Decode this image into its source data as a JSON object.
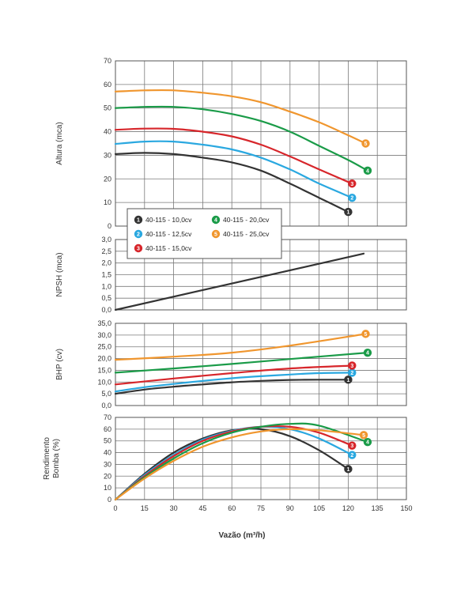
{
  "chart_data": {
    "type": "line",
    "xlabel": "Vazão (m³/h)",
    "x_ticks": [
      "0",
      "15",
      "30",
      "45",
      "60",
      "75",
      "90",
      "105",
      "120",
      "135",
      "150"
    ],
    "xlim": [
      0,
      150
    ],
    "legend": {
      "placement": "inside-top-panel-bottom-left",
      "entries": [
        {
          "id": "1",
          "label": "40-115 - 10,0cv",
          "color": "#333333"
        },
        {
          "id": "2",
          "label": "40-115 - 12,5cv",
          "color": "#2aa8e0"
        },
        {
          "id": "3",
          "label": "40-115 - 15,0cv",
          "color": "#d7262b"
        },
        {
          "id": "4",
          "label": "40-115 - 20,0cv",
          "color": "#1a9b48"
        },
        {
          "id": "5",
          "label": "40-115 - 25,0cv",
          "color": "#f0962e"
        }
      ]
    },
    "panels": [
      {
        "name": "altura",
        "ylabel": "Altura (mca)",
        "ylim": [
          0,
          70
        ],
        "y_ticks": [
          "0",
          "10",
          "20",
          "30",
          "40",
          "50",
          "60",
          "70"
        ],
        "grid": true,
        "series": [
          {
            "id": "1",
            "color": "#333333",
            "points": [
              [
                0,
                30.5
              ],
              [
                15,
                31
              ],
              [
                30,
                30.5
              ],
              [
                45,
                29
              ],
              [
                60,
                27
              ],
              [
                75,
                23.5
              ],
              [
                90,
                18
              ],
              [
                105,
                12
              ],
              [
                120,
                6
              ]
            ]
          },
          {
            "id": "2",
            "color": "#2aa8e0",
            "points": [
              [
                0,
                34.8
              ],
              [
                15,
                35.8
              ],
              [
                30,
                35.8
              ],
              [
                45,
                34.5
              ],
              [
                60,
                32.5
              ],
              [
                75,
                29
              ],
              [
                90,
                24
              ],
              [
                105,
                18
              ],
              [
                122,
                12
              ]
            ]
          },
          {
            "id": "3",
            "color": "#d7262b",
            "points": [
              [
                0,
                40.8
              ],
              [
                15,
                41.3
              ],
              [
                30,
                41.2
              ],
              [
                45,
                40
              ],
              [
                60,
                38
              ],
              [
                75,
                34.5
              ],
              [
                90,
                29.5
              ],
              [
                105,
                24
              ],
              [
                122,
                18
              ]
            ]
          },
          {
            "id": "4",
            "color": "#1a9b48",
            "points": [
              [
                0,
                50
              ],
              [
                15,
                50.5
              ],
              [
                30,
                50.5
              ],
              [
                45,
                49.5
              ],
              [
                60,
                47.5
              ],
              [
                75,
                44.5
              ],
              [
                90,
                40
              ],
              [
                105,
                34
              ],
              [
                120,
                28
              ],
              [
                130,
                23.5
              ]
            ]
          },
          {
            "id": "5",
            "color": "#f0962e",
            "points": [
              [
                0,
                57
              ],
              [
                15,
                57.5
              ],
              [
                30,
                57.5
              ],
              [
                45,
                56.5
              ],
              [
                60,
                55
              ],
              [
                75,
                52.5
              ],
              [
                90,
                48.5
              ],
              [
                105,
                44
              ],
              [
                120,
                38.5
              ],
              [
                129,
                35
              ]
            ]
          }
        ]
      },
      {
        "name": "npsh",
        "ylabel": "NPSH (mca)",
        "ylim": [
          0,
          3.0
        ],
        "y_ticks": [
          "0,0",
          "0,5",
          "1,0",
          "1,5",
          "2,0",
          "2,5",
          "3,0"
        ],
        "grid": true,
        "series": [
          {
            "id": "npsh",
            "color": "#333333",
            "marker": false,
            "points": [
              [
                0,
                0
              ],
              [
                128,
                2.4
              ]
            ]
          }
        ]
      },
      {
        "name": "bhp",
        "ylabel": "BHP (cv)",
        "ylim": [
          0,
          35
        ],
        "y_ticks": [
          "0,0",
          "5,0",
          "10,0",
          "15,0",
          "20,0",
          "25,0",
          "30,0",
          "35,0"
        ],
        "grid": true,
        "series": [
          {
            "id": "1",
            "color": "#333333",
            "points": [
              [
                0,
                5
              ],
              [
                15,
                6.8
              ],
              [
                30,
                8
              ],
              [
                45,
                9
              ],
              [
                60,
                9.9
              ],
              [
                75,
                10.5
              ],
              [
                90,
                10.9
              ],
              [
                105,
                11
              ],
              [
                120,
                11
              ]
            ]
          },
          {
            "id": "2",
            "color": "#2aa8e0",
            "points": [
              [
                0,
                6
              ],
              [
                15,
                7.8
              ],
              [
                30,
                9.2
              ],
              [
                45,
                10.5
              ],
              [
                60,
                11.6
              ],
              [
                75,
                12.5
              ],
              [
                90,
                13.2
              ],
              [
                105,
                13.8
              ],
              [
                122,
                14
              ]
            ]
          },
          {
            "id": "3",
            "color": "#d7262b",
            "points": [
              [
                0,
                9
              ],
              [
                30,
                11.5
              ],
              [
                60,
                13.8
              ],
              [
                90,
                15.8
              ],
              [
                122,
                17
              ]
            ]
          },
          {
            "id": "4",
            "color": "#1a9b48",
            "points": [
              [
                0,
                14
              ],
              [
                30,
                15.8
              ],
              [
                60,
                17.7
              ],
              [
                90,
                19.8
              ],
              [
                130,
                22.5
              ]
            ]
          },
          {
            "id": "5",
            "color": "#f0962e",
            "points": [
              [
                0,
                19.5
              ],
              [
                30,
                20.8
              ],
              [
                60,
                22.5
              ],
              [
                90,
                25.5
              ],
              [
                129,
                30.5
              ]
            ]
          }
        ]
      },
      {
        "name": "rendimento",
        "ylabel": "Rendimento Bomba (%)",
        "ylim": [
          0,
          70
        ],
        "y_ticks": [
          "0",
          "10",
          "20",
          "30",
          "40",
          "50",
          "60",
          "70"
        ],
        "grid": true,
        "series": [
          {
            "id": "1",
            "color": "#333333",
            "points": [
              [
                0,
                0
              ],
              [
                15,
                22
              ],
              [
                30,
                40
              ],
              [
                45,
                52
              ],
              [
                60,
                59
              ],
              [
                75,
                60
              ],
              [
                90,
                54
              ],
              [
                105,
                42
              ],
              [
                120,
                26
              ]
            ]
          },
          {
            "id": "2",
            "color": "#2aa8e0",
            "points": [
              [
                0,
                0
              ],
              [
                15,
                21
              ],
              [
                30,
                38
              ],
              [
                45,
                51
              ],
              [
                60,
                58.5
              ],
              [
                75,
                62
              ],
              [
                90,
                60
              ],
              [
                105,
                52
              ],
              [
                122,
                38
              ]
            ]
          },
          {
            "id": "3",
            "color": "#d7262b",
            "points": [
              [
                0,
                0
              ],
              [
                15,
                20
              ],
              [
                30,
                37
              ],
              [
                45,
                50
              ],
              [
                60,
                58
              ],
              [
                75,
                62
              ],
              [
                90,
                62
              ],
              [
                105,
                57
              ],
              [
                122,
                46
              ]
            ]
          },
          {
            "id": "4",
            "color": "#1a9b48",
            "points": [
              [
                0,
                0
              ],
              [
                15,
                19
              ],
              [
                30,
                35
              ],
              [
                45,
                48
              ],
              [
                60,
                57
              ],
              [
                75,
                62
              ],
              [
                90,
                64.5
              ],
              [
                105,
                63
              ],
              [
                130,
                49
              ]
            ]
          },
          {
            "id": "5",
            "color": "#f0962e",
            "points": [
              [
                0,
                0
              ],
              [
                15,
                18
              ],
              [
                30,
                33
              ],
              [
                45,
                45
              ],
              [
                60,
                53
              ],
              [
                75,
                58
              ],
              [
                90,
                60
              ],
              [
                105,
                59
              ],
              [
                128,
                55
              ]
            ]
          }
        ]
      }
    ]
  }
}
